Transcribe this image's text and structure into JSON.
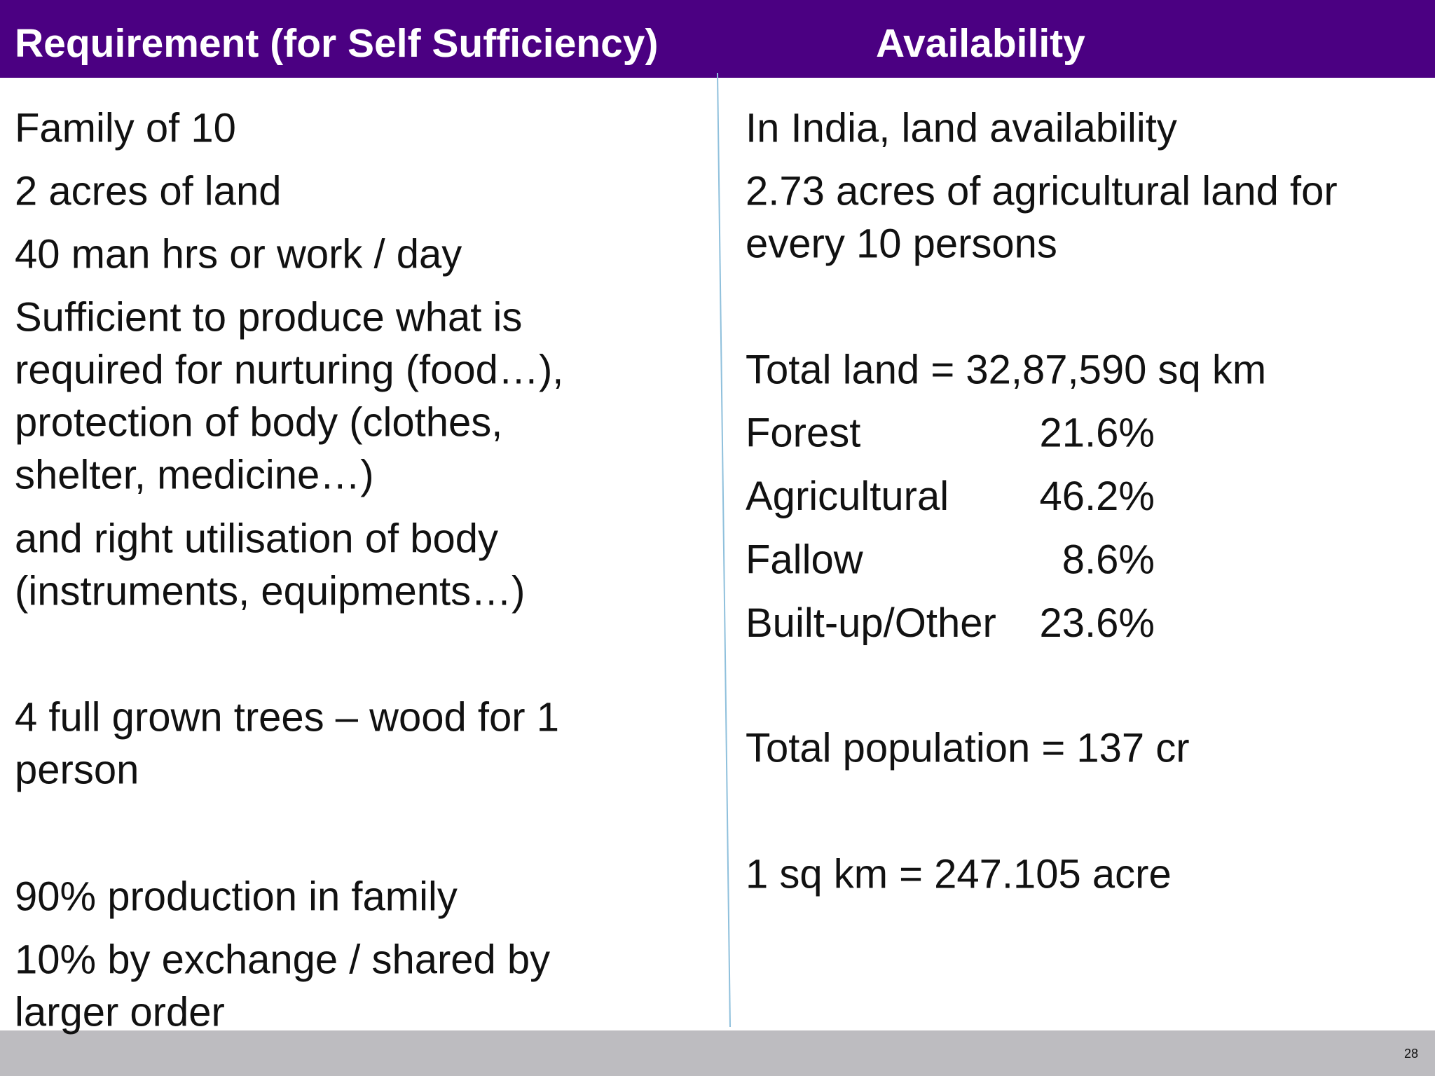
{
  "header": {
    "left_title": "Requirement (for Self Sufficiency)",
    "right_title": "Availability"
  },
  "left": {
    "items": [
      [
        "Family of 10"
      ],
      [
        "2 acres of land"
      ],
      [
        "40 man hrs or work / day"
      ],
      [
        "Sufficient to produce what is",
        "required for nurturing (food…),",
        "protection of body (clothes,",
        "shelter, medicine…)"
      ],
      [
        "and right utilisation of body",
        "(instruments, equipments…)"
      ],
      [
        "4 full grown trees – wood for 1",
        "person"
      ],
      [
        "90% production in family"
      ],
      [
        "10% by exchange / shared by",
        "larger order"
      ]
    ]
  },
  "right": {
    "intro": [
      "In India, land availability"
    ],
    "per_person": [
      "2.73 acres of agricultural land for",
      "every 10 persons"
    ],
    "total_land": "Total land = 32,87,590 sq km",
    "land_use": [
      [
        "Forest",
        "21.6%"
      ],
      [
        "Agricultural",
        "46.2%"
      ],
      [
        "Fallow",
        "8.6%"
      ],
      [
        "Built-up/Other",
        "23.6%"
      ]
    ],
    "population": "Total population = 137 cr",
    "conversion": "1 sq km = 247.105 acre"
  },
  "footer": {
    "page_number": "28"
  }
}
